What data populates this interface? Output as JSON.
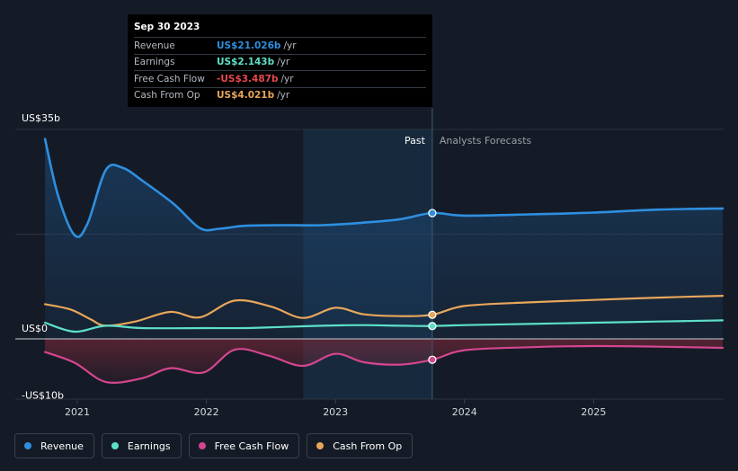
{
  "tooltip": {
    "date": "Sep 30 2023",
    "rows": [
      {
        "name": "Revenue",
        "value": "US$21.026b",
        "unit": "/yr",
        "color": "#2e8fe0"
      },
      {
        "name": "Earnings",
        "value": "US$2.143b",
        "unit": "/yr",
        "color": "#5de0c8"
      },
      {
        "name": "Free Cash Flow",
        "value": "-US$3.487b",
        "unit": "/yr",
        "color": "#e5484d"
      },
      {
        "name": "Cash From Op",
        "value": "US$4.021b",
        "unit": "/yr",
        "color": "#e8a65b"
      }
    ]
  },
  "labels": {
    "past": "Past",
    "forecast": "Analysts Forecasts"
  },
  "legend": [
    {
      "name": "Revenue",
      "color": "#2e8fe0"
    },
    {
      "name": "Earnings",
      "color": "#5de0c8"
    },
    {
      "name": "Free Cash Flow",
      "color": "#d4468f"
    },
    {
      "name": "Cash From Op",
      "color": "#e8a65b"
    }
  ],
  "chart_data": {
    "type": "line",
    "ylim": [
      -10,
      35
    ],
    "y_tick_labels": [
      {
        "value": 35,
        "label": "US$35b"
      },
      {
        "value": 0,
        "label": "US$0"
      },
      {
        "value": -10,
        "label": "-US$10b"
      }
    ],
    "x_tick_labels": [
      {
        "value": 2021,
        "label": "2021"
      },
      {
        "value": 2022,
        "label": "2022"
      },
      {
        "value": 2023,
        "label": "2023"
      },
      {
        "value": 2024,
        "label": "2024"
      },
      {
        "value": 2025,
        "label": "2025"
      }
    ],
    "xlim": [
      2020.5,
      2026.0
    ],
    "past_end": 2023.75,
    "highlight_start": 2022.75,
    "series": [
      {
        "name": "Revenue",
        "color": "#2e8fe0",
        "fill": true,
        "points": [
          [
            2020.75,
            33.4
          ],
          [
            2020.85,
            24.0
          ],
          [
            2020.98,
            17.3
          ],
          [
            2021.08,
            19.3
          ],
          [
            2021.22,
            28.2
          ],
          [
            2021.35,
            28.6
          ],
          [
            2021.5,
            26.5
          ],
          [
            2021.75,
            22.5
          ],
          [
            2021.95,
            18.5
          ],
          [
            2022.1,
            18.4
          ],
          [
            2022.3,
            18.9
          ],
          [
            2022.6,
            19.0
          ],
          [
            2022.9,
            19.0
          ],
          [
            2023.2,
            19.4
          ],
          [
            2023.5,
            20.0
          ],
          [
            2023.75,
            21.026
          ],
          [
            2024.0,
            20.6
          ],
          [
            2024.5,
            20.8
          ],
          [
            2025.0,
            21.1
          ],
          [
            2025.5,
            21.6
          ],
          [
            2026.0,
            21.8
          ]
        ]
      },
      {
        "name": "Cash From Op",
        "color": "#e8a65b",
        "fill": false,
        "points": [
          [
            2020.75,
            5.8
          ],
          [
            2020.95,
            4.9
          ],
          [
            2021.1,
            3.3
          ],
          [
            2021.22,
            2.2
          ],
          [
            2021.45,
            2.9
          ],
          [
            2021.72,
            4.5
          ],
          [
            2021.95,
            3.6
          ],
          [
            2022.22,
            6.4
          ],
          [
            2022.5,
            5.4
          ],
          [
            2022.75,
            3.5
          ],
          [
            2023.0,
            5.2
          ],
          [
            2023.22,
            4.1
          ],
          [
            2023.5,
            3.8
          ],
          [
            2023.75,
            4.021
          ],
          [
            2024.0,
            5.5
          ],
          [
            2024.5,
            6.1
          ],
          [
            2025.0,
            6.5
          ],
          [
            2025.5,
            6.9
          ],
          [
            2026.0,
            7.2
          ]
        ]
      },
      {
        "name": "Earnings",
        "color": "#5de0c8",
        "fill": false,
        "points": [
          [
            2020.75,
            2.7
          ],
          [
            2020.98,
            1.2
          ],
          [
            2021.22,
            2.2
          ],
          [
            2021.5,
            1.8
          ],
          [
            2022.0,
            1.8
          ],
          [
            2022.3,
            1.8
          ],
          [
            2022.6,
            2.0
          ],
          [
            2022.9,
            2.2
          ],
          [
            2023.2,
            2.3
          ],
          [
            2023.5,
            2.2
          ],
          [
            2023.75,
            2.143
          ],
          [
            2024.0,
            2.3
          ],
          [
            2024.5,
            2.5
          ],
          [
            2025.0,
            2.7
          ],
          [
            2025.5,
            2.9
          ],
          [
            2026.0,
            3.1
          ]
        ]
      },
      {
        "name": "Free Cash Flow",
        "color": "#d4468f",
        "fill": true,
        "points": [
          [
            2020.75,
            -2.2
          ],
          [
            2020.98,
            -4.0
          ],
          [
            2021.22,
            -7.2
          ],
          [
            2021.5,
            -6.6
          ],
          [
            2021.72,
            -4.9
          ],
          [
            2021.98,
            -5.6
          ],
          [
            2022.22,
            -1.8
          ],
          [
            2022.48,
            -2.8
          ],
          [
            2022.75,
            -4.5
          ],
          [
            2023.0,
            -2.5
          ],
          [
            2023.22,
            -3.9
          ],
          [
            2023.5,
            -4.3
          ],
          [
            2023.75,
            -3.487
          ],
          [
            2024.0,
            -1.9
          ],
          [
            2024.5,
            -1.4
          ],
          [
            2025.0,
            -1.2
          ],
          [
            2025.5,
            -1.3
          ],
          [
            2026.0,
            -1.5
          ]
        ]
      }
    ],
    "markers": [
      {
        "series": "Revenue",
        "x": 2023.75,
        "y": 21.026
      },
      {
        "series": "Cash From Op",
        "x": 2023.75,
        "y": 4.021
      },
      {
        "series": "Earnings",
        "x": 2023.75,
        "y": 2.143
      },
      {
        "series": "Free Cash Flow",
        "x": 2023.75,
        "y": -3.487
      }
    ],
    "grid": true,
    "legend_position": "bottom-left"
  }
}
